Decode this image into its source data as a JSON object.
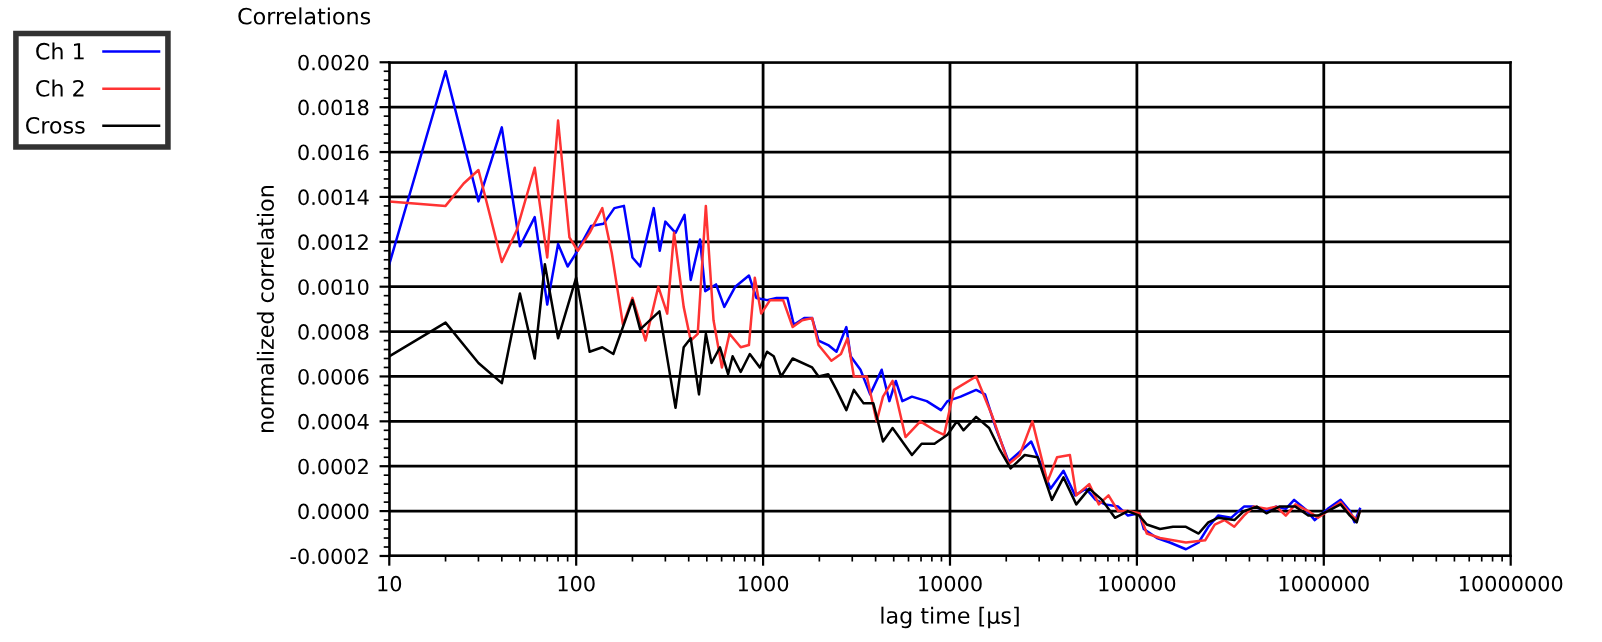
{
  "chart_data": {
    "type": "line",
    "title": "Correlations",
    "xlabel": "lag time [µs]",
    "ylabel": "normalized correlation",
    "log": "x",
    "grid": true,
    "legend": "top left",
    "line_style": "solid",
    "marker": "none",
    "xlim": [
      10,
      10000000
    ],
    "xticks": [
      10,
      100,
      1000,
      10000,
      100000,
      1000000,
      10000000
    ],
    "ylim": [
      -0.0002,
      0.002
    ],
    "yticks": [
      {
        "value": -0.0002,
        "label": "-0.0002"
      },
      {
        "value": 0,
        "label": "0.0000"
      },
      {
        "value": 0.0002,
        "label": "0.0002"
      },
      {
        "value": 0.0004,
        "label": "0.0004"
      },
      {
        "value": 0.0006,
        "label": "0.0006"
      },
      {
        "value": 0.0008,
        "label": "0.0008"
      },
      {
        "value": 0.001,
        "label": "0.0010"
      },
      {
        "value": 0.0012,
        "label": "0.0012"
      },
      {
        "value": 0.0014,
        "label": "0.0014"
      },
      {
        "value": 0.0016,
        "label": "0.0016"
      },
      {
        "value": 0.0018,
        "label": "0.0018"
      },
      {
        "value": 0.002,
        "label": "0.0020"
      }
    ],
    "series": [
      {
        "name": "Ch 1",
        "color": "#0000ff",
        "x": [
          10,
          20,
          30,
          40,
          50,
          60,
          70,
          80,
          90,
          100,
          120,
          140,
          160,
          180,
          200,
          220,
          260,
          280,
          300,
          340,
          380,
          410,
          460,
          490,
          560,
          620,
          710,
          840,
          920,
          1050,
          1180,
          1350,
          1460,
          1660,
          1830,
          1980,
          2230,
          2470,
          2790,
          2940,
          3320,
          3740,
          4310,
          4740,
          5130,
          5560,
          6260,
          7510,
          8950,
          9690,
          11400,
          13800,
          15400,
          17600,
          20600,
          24100,
          27200,
          30600,
          34500,
          40500,
          46700,
          53400,
          60200,
          67700,
          79400,
          89500,
          103000,
          109000,
          128000,
          150000,
          183000,
          214000,
          241000,
          272000,
          319000,
          374000,
          421000,
          493000,
          556000,
          626000,
          694000,
          794000,
          895000,
          1050000,
          1230000,
          1380000,
          1460000,
          1560000
        ],
        "values": [
          0.0011,
          0.00196,
          0.00138,
          0.00171,
          0.00118,
          0.00131,
          0.00092,
          0.00119,
          0.00109,
          0.00115,
          0.00127,
          0.00128,
          0.00135,
          0.00136,
          0.00113,
          0.00109,
          0.00135,
          0.00116,
          0.00129,
          0.00124,
          0.00132,
          0.00103,
          0.00121,
          0.00098,
          0.00101,
          0.00091,
          0.001,
          0.00105,
          0.00095,
          0.00094,
          0.00095,
          0.00095,
          0.00083,
          0.00086,
          0.00086,
          0.00076,
          0.00074,
          0.00071,
          0.00082,
          0.00069,
          0.00063,
          0.00052,
          0.00063,
          0.00049,
          0.00058,
          0.00049,
          0.00051,
          0.00049,
          0.00045,
          0.00049,
          0.00051,
          0.00054,
          0.00052,
          0.00037,
          0.00022,
          0.00027,
          0.00031,
          0.00021,
          0.0001,
          0.00018,
          7e-05,
          0.0001,
          5e-05,
          3e-05,
          2e-05,
          -2e-05,
          -1e-05,
          -8e-05,
          -0.00012,
          -0.00014,
          -0.00017,
          -0.00014,
          -7e-05,
          -2e-05,
          -3e-05,
          2e-05,
          2e-05,
          0.0,
          2e-05,
          1e-05,
          5e-05,
          1e-05,
          -4e-05,
          1e-05,
          5e-05,
          0.0,
          -5e-05,
          1e-05
        ]
      },
      {
        "name": "Ch 2",
        "color": "#ff3333",
        "x": [
          10,
          20,
          25,
          30,
          40,
          48,
          60,
          70,
          80,
          86,
          92,
          102,
          118,
          138,
          155,
          178,
          200,
          235,
          275,
          307,
          334,
          376,
          410,
          447,
          494,
          543,
          602,
          661,
          759,
          840,
          903,
          977,
          1090,
          1280,
          1440,
          1620,
          1830,
          1980,
          2320,
          2610,
          2830,
          3060,
          3590,
          4050,
          4380,
          4930,
          5780,
          6940,
          8260,
          9310,
          10500,
          13800,
          16900,
          20600,
          23600,
          27600,
          33200,
          37400,
          43800,
          47400,
          55600,
          62600,
          70500,
          79400,
          89500,
          103000,
          113000,
          133000,
          156000,
          183000,
          232000,
          261000,
          294000,
          332000,
          374000,
          421000,
          493000,
          556000,
          626000,
          705000,
          826000,
          931000,
          1050000,
          1230000,
          1380000,
          1500000,
          1560000
        ],
        "values": [
          0.00138,
          0.00136,
          0.00146,
          0.00152,
          0.00111,
          0.00125,
          0.00153,
          0.00113,
          0.00174,
          0.00147,
          0.00122,
          0.00116,
          0.00124,
          0.00135,
          0.00115,
          0.00083,
          0.00095,
          0.00076,
          0.001,
          0.00088,
          0.00124,
          0.00091,
          0.00076,
          0.00079,
          0.00136,
          0.00085,
          0.00064,
          0.00079,
          0.00073,
          0.00074,
          0.00104,
          0.00088,
          0.00094,
          0.00094,
          0.00082,
          0.00085,
          0.00086,
          0.00074,
          0.00067,
          0.0007,
          0.00077,
          0.0006,
          0.0006,
          0.0004,
          0.00051,
          0.00058,
          0.00033,
          0.0004,
          0.00036,
          0.00034,
          0.00054,
          0.0006,
          0.00042,
          0.00021,
          0.00025,
          0.0004,
          0.00013,
          0.00024,
          0.00025,
          7e-05,
          0.00012,
          3e-05,
          7e-05,
          0.0,
          0.0,
          -1e-05,
          -0.0001,
          -0.00012,
          -0.00013,
          -0.00014,
          -0.00013,
          -6e-05,
          -4e-05,
          -7e-05,
          -2e-05,
          2e-05,
          1e-05,
          2e-05,
          -2e-05,
          3e-05,
          0.0,
          -3e-05,
          0.0,
          4e-05,
          -1e-05,
          -4e-05,
          0.0
        ]
      },
      {
        "name": "Cross",
        "color": "#000000",
        "x": [
          10,
          20,
          30,
          40,
          50,
          60,
          68,
          80,
          100,
          118,
          138,
          158,
          200,
          220,
          279,
          340,
          376,
          410,
          454,
          494,
          530,
          588,
          650,
          687,
          759,
          849,
          961,
          1050,
          1140,
          1250,
          1440,
          1830,
          1980,
          2230,
          2470,
          2790,
          3060,
          3450,
          3890,
          4380,
          4930,
          6260,
          7050,
          8260,
          9690,
          10900,
          11800,
          13800,
          16200,
          18300,
          21100,
          25100,
          29400,
          35100,
          40500,
          47400,
          55600,
          65100,
          76300,
          89500,
          103000,
          113000,
          133000,
          156000,
          183000,
          214000,
          241000,
          272000,
          332000,
          374000,
          438000,
          493000,
          578000,
          705000,
          826000,
          931000,
          1050000,
          1230000,
          1380000,
          1500000,
          1560000
        ],
        "values": [
          0.00069,
          0.00084,
          0.00066,
          0.00057,
          0.00097,
          0.00068,
          0.0011,
          0.00077,
          0.00104,
          0.00071,
          0.00073,
          0.0007,
          0.00094,
          0.00081,
          0.00089,
          0.00046,
          0.00073,
          0.00077,
          0.00052,
          0.00079,
          0.00066,
          0.00073,
          0.00061,
          0.00069,
          0.00062,
          0.0007,
          0.00064,
          0.00071,
          0.00069,
          0.0006,
          0.00068,
          0.00064,
          0.0006,
          0.00061,
          0.00054,
          0.00045,
          0.00054,
          0.00048,
          0.00048,
          0.00031,
          0.00037,
          0.00025,
          0.0003,
          0.0003,
          0.00034,
          0.0004,
          0.00036,
          0.00042,
          0.00037,
          0.00028,
          0.00019,
          0.00025,
          0.00024,
          5e-05,
          0.00015,
          3e-05,
          0.0001,
          5e-05,
          -3e-05,
          0.0,
          -2e-05,
          -6e-05,
          -8e-05,
          -7e-05,
          -7e-05,
          -0.0001,
          -5e-05,
          -3e-05,
          -4e-05,
          0.0,
          2e-05,
          -1e-05,
          2e-05,
          2e-05,
          -2e-05,
          -2e-05,
          0.0,
          3e-05,
          -2e-05,
          -5e-05,
          0.0
        ]
      }
    ]
  }
}
